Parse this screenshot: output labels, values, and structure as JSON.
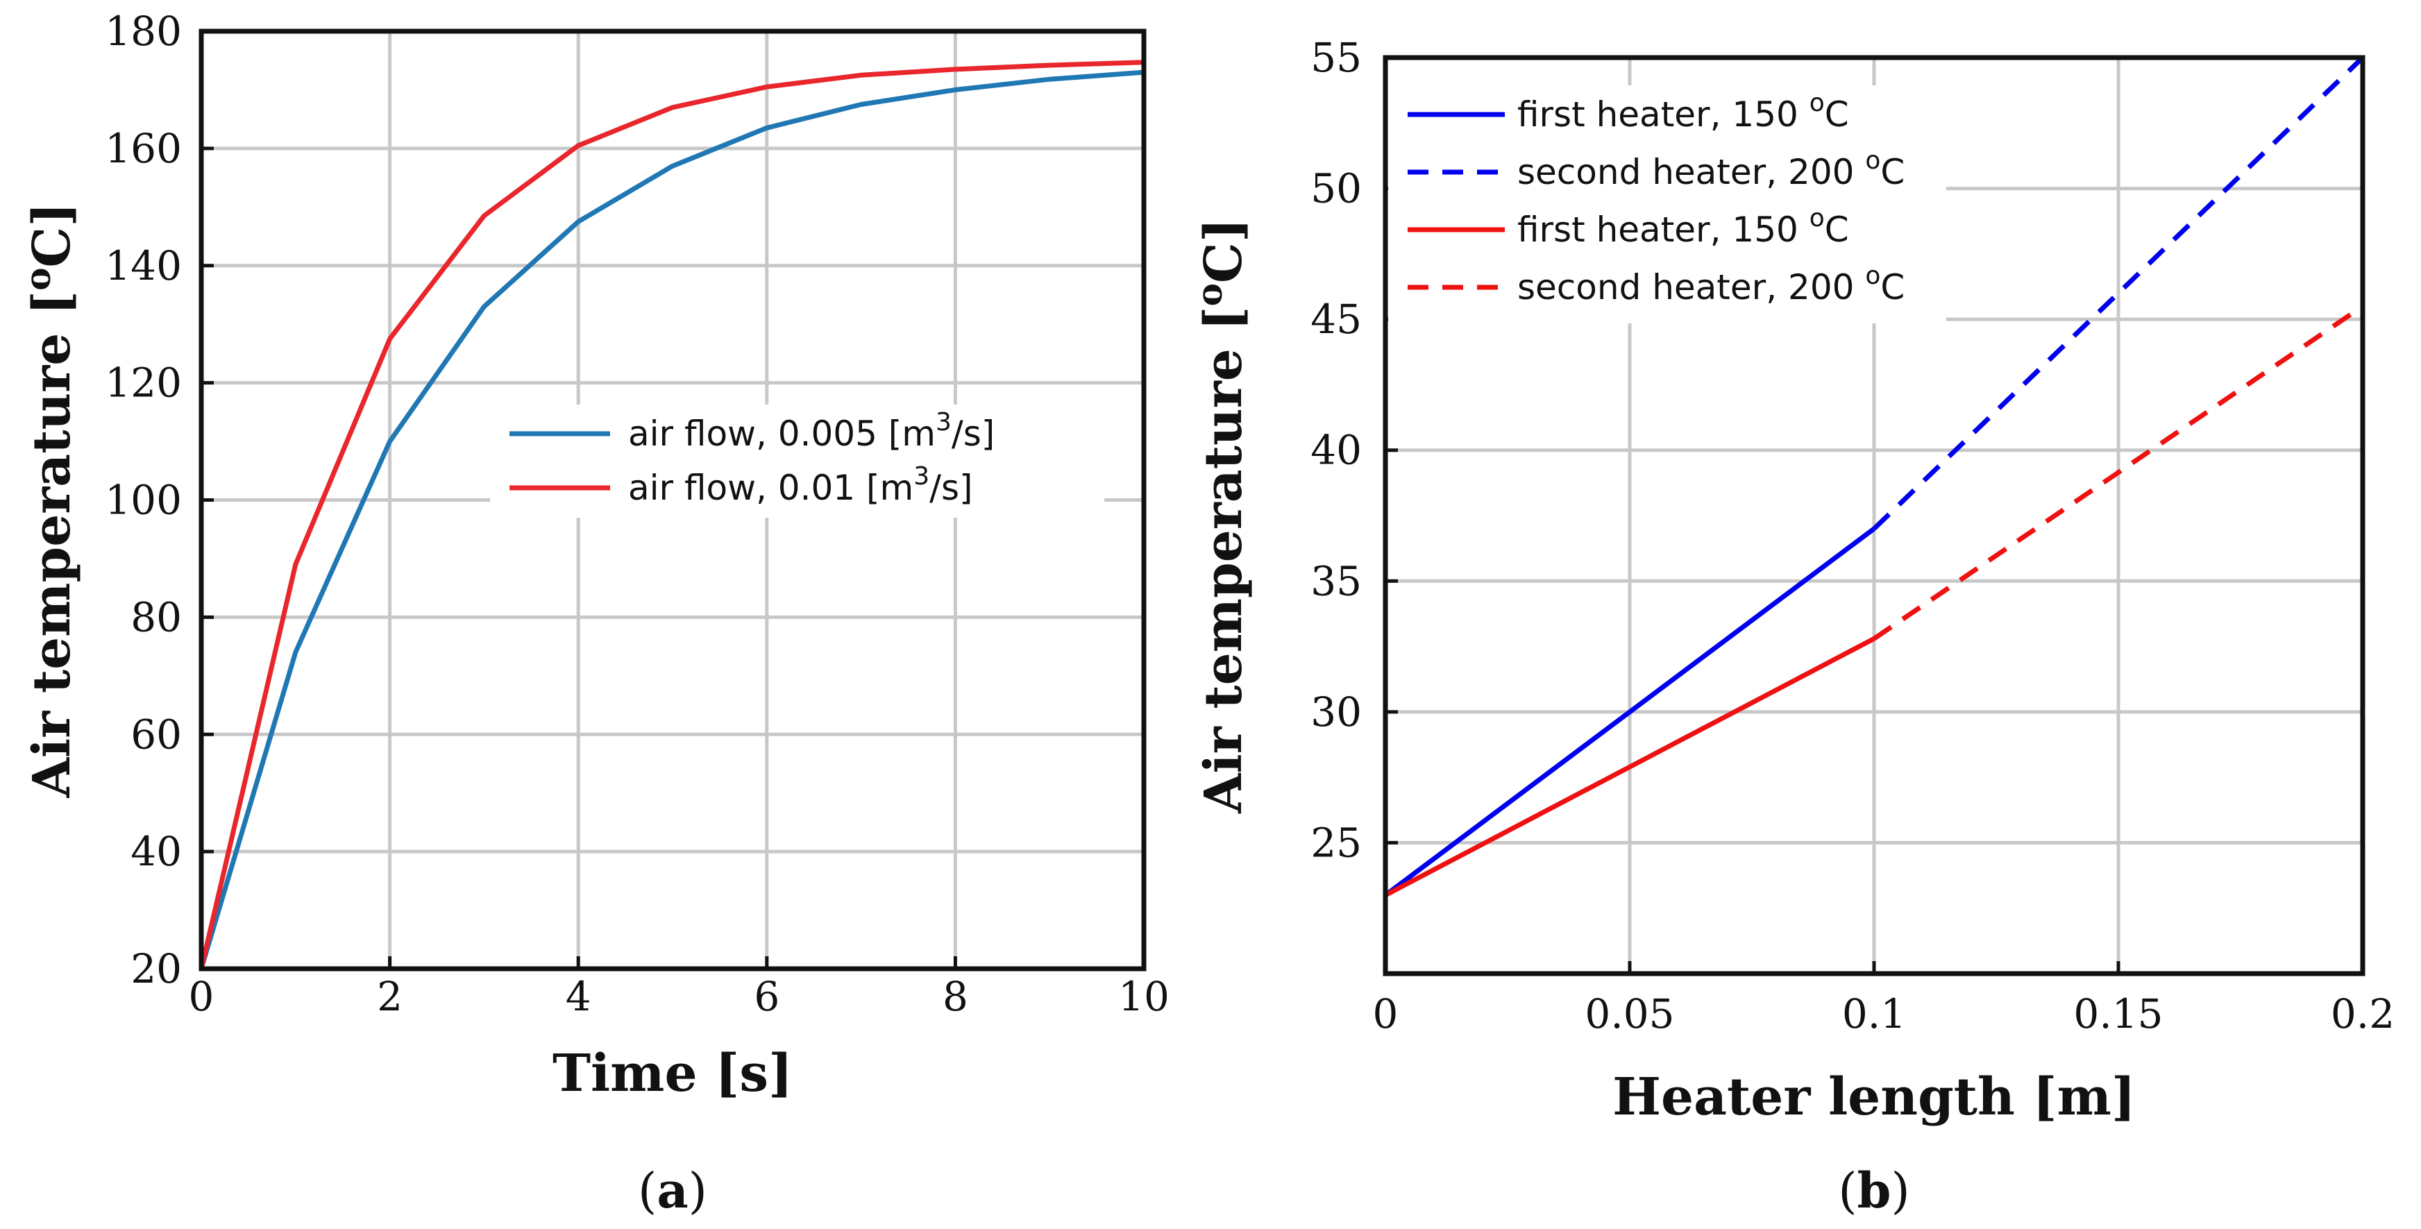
{
  "chart_data": [
    {
      "id": "a",
      "type": "line",
      "caption": "a",
      "xlabel": "Time [s]",
      "ylabel": "Air temperature [°C]",
      "ylabel_parts": {
        "main": "Air temperature [",
        "sup": "o",
        "unit": "C]"
      },
      "xlim": [
        0,
        10
      ],
      "ylim": [
        20,
        180
      ],
      "x_ticks": [
        0,
        2,
        4,
        6,
        8,
        10
      ],
      "y_ticks": [
        20,
        40,
        60,
        80,
        100,
        120,
        140,
        160,
        180
      ],
      "x_tick_labels": [
        "0",
        "2",
        "4",
        "6",
        "8",
        "10"
      ],
      "y_tick_labels": [
        "20",
        "40",
        "60",
        "80",
        "100",
        "120",
        "140",
        "160",
        "180"
      ],
      "grid": true,
      "legend_position": "center-right",
      "series": [
        {
          "name": "air flow, 0.005 [m3/s]",
          "label_parts": {
            "main": "air flow, 0.005 [m",
            "sup": "3",
            "unit": "/s]"
          },
          "color": "#1f77b4",
          "dash": "solid",
          "x": [
            0,
            1,
            2,
            3,
            4,
            5,
            6,
            7,
            8,
            9,
            10
          ],
          "y": [
            20,
            74,
            110,
            133,
            147.5,
            157,
            163.5,
            167.5,
            170,
            171.8,
            173
          ]
        },
        {
          "name": "air flow, 0.01 [m3/s]",
          "label_parts": {
            "main": "air flow, 0.01 [m",
            "sup": "3",
            "unit": "/s]"
          },
          "color": "#e8262c",
          "dash": "solid",
          "x": [
            0,
            1,
            2,
            3,
            4,
            5,
            6,
            7,
            8,
            9,
            10
          ],
          "y": [
            20,
            89,
            127.5,
            148.5,
            160.5,
            167,
            170.5,
            172.5,
            173.5,
            174.2,
            174.7
          ]
        }
      ]
    },
    {
      "id": "b",
      "type": "line",
      "caption": "b",
      "xlabel": "Heater length [m]",
      "ylabel": "Air temperature [°C]",
      "ylabel_parts": {
        "main": "Air temperature [",
        "sup": "o",
        "unit": "C]"
      },
      "xlim": [
        0,
        0.2
      ],
      "ylim": [
        20,
        55
      ],
      "x_ticks": [
        0,
        0.05,
        0.1,
        0.15,
        0.2
      ],
      "y_ticks": [
        25,
        30,
        35,
        40,
        45,
        50,
        55
      ],
      "x_tick_labels": [
        "0",
        "0.05",
        "0.1",
        "0.15",
        "0.2"
      ],
      "y_tick_labels": [
        "25",
        "30",
        "35",
        "40",
        "45",
        "50",
        "55"
      ],
      "grid": true,
      "legend_position": "top-left",
      "series": [
        {
          "name": "first heater, 150 °C",
          "label_parts": {
            "main": "first heater, 150 ",
            "sup": "o",
            "unit": "C"
          },
          "color": "#0000ee",
          "dash": "solid",
          "x": [
            0,
            0.1
          ],
          "y": [
            23,
            37
          ]
        },
        {
          "name": "second heater, 200 °C",
          "label_parts": {
            "main": "second heater, 200 ",
            "sup": "o",
            "unit": "C"
          },
          "color": "#0000ee",
          "dash": "dashed",
          "x": [
            0.1,
            0.2
          ],
          "y": [
            37,
            55
          ]
        },
        {
          "name": "first heater, 150 °C",
          "label_parts": {
            "main": "first heater, 150 ",
            "sup": "o",
            "unit": "C"
          },
          "color": "#ee1111",
          "dash": "solid",
          "x": [
            0,
            0.1
          ],
          "y": [
            23,
            32.8
          ]
        },
        {
          "name": "second heater, 200 °C",
          "label_parts": {
            "main": "second heater, 200 ",
            "sup": "o",
            "unit": "C"
          },
          "color": "#ee1111",
          "dash": "dashed",
          "x": [
            0.1,
            0.2
          ],
          "y": [
            32.8,
            45.5
          ]
        }
      ]
    }
  ]
}
